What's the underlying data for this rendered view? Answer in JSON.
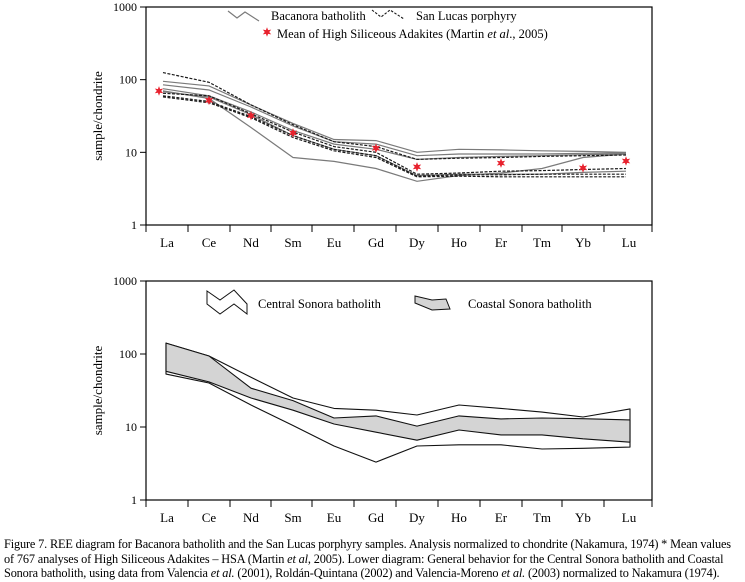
{
  "chart_data": [
    {
      "type": "line",
      "title": "",
      "xlabel": "",
      "ylabel": "sample/chondrite",
      "yscale": "log",
      "ylim": [
        1,
        1000
      ],
      "yticks": [
        "1",
        "10",
        "100",
        "1000"
      ],
      "categories": [
        "La",
        "Ce",
        "Nd",
        "Sm",
        "Eu",
        "Gd",
        "Dy",
        "Ho",
        "Er",
        "Tm",
        "Yb",
        "Lu"
      ],
      "grid": false,
      "legend": {
        "placement": "top-center",
        "entries": [
          {
            "label": "Bacanora batholith",
            "style": "solid-grey"
          },
          {
            "label": "San Lucas porphyry",
            "style": "dashed-black"
          },
          {
            "label_prefix": "Mean of High Siliceous Adakites (Martin ",
            "label_italic": "et al",
            "label_suffix": "., 2005)",
            "style": "red-star"
          }
        ]
      },
      "series": [
        {
          "name": "Bacanora batholith",
          "group": "bacanora",
          "values": [
            95,
            82,
            45,
            25,
            15,
            14.5,
            10,
            11,
            10.8,
            10.5,
            10.3,
            10
          ]
        },
        {
          "name": "Bacanora batholith",
          "group": "bacanora",
          "values": [
            85,
            72,
            42,
            23,
            14,
            13,
            9,
            9.5,
            9.5,
            9.5,
            9.7,
            9.8
          ]
        },
        {
          "name": "Bacanora batholith",
          "group": "bacanora",
          "values": [
            75,
            60,
            36,
            20,
            13,
            11,
            8,
            8.5,
            8.8,
            9,
            9.3,
            9.5
          ]
        },
        {
          "name": "Bacanora batholith",
          "group": "bacanora",
          "values": [
            70,
            55,
            22,
            8.5,
            7.5,
            6,
            4,
            4.8,
            5.2,
            6,
            8.5,
            9.5
          ]
        },
        {
          "name": "Bacanora batholith",
          "group": "bacanora",
          "values": [
            68,
            58,
            33,
            17,
            11,
            9,
            4.8,
            5,
            5,
            5,
            5.3,
            5.5
          ]
        },
        {
          "name": "San Lucas porphyry",
          "group": "sanlucas",
          "values": [
            125,
            92,
            45,
            24,
            14,
            12,
            8,
            8.3,
            8.5,
            8.8,
            9,
            9.2
          ]
        },
        {
          "name": "San Lucas porphyry",
          "group": "sanlucas",
          "values": [
            65,
            60,
            34,
            19,
            12,
            10,
            5,
            5.2,
            5.5,
            5.6,
            5.8,
            6
          ]
        },
        {
          "name": "San Lucas porphyry",
          "group": "sanlucas",
          "values": [
            60,
            50,
            31,
            17,
            11,
            9,
            4.7,
            4.9,
            4.9,
            5,
            5,
            5
          ]
        },
        {
          "name": "San Lucas porphyry",
          "group": "sanlucas",
          "values": [
            58,
            48,
            30,
            16,
            10.5,
            8.5,
            4.6,
            4.7,
            4.6,
            4.6,
            4.6,
            4.6
          ]
        }
      ],
      "markers": {
        "name": "Mean of High Siliceous Adakites",
        "points": [
          {
            "x": "La",
            "y": 70
          },
          {
            "x": "Ce",
            "y": 52
          },
          {
            "x": "Nd",
            "y": 32
          },
          {
            "x": "Sm",
            "y": 18.5
          },
          {
            "x": "Gd",
            "y": 11.4
          },
          {
            "x": "Dy",
            "y": 6.3
          },
          {
            "x": "Er",
            "y": 7.1
          },
          {
            "x": "Yb",
            "y": 6.1
          },
          {
            "x": "Lu",
            "y": 7.6
          }
        ]
      }
    },
    {
      "type": "area",
      "title": "",
      "xlabel": "",
      "ylabel": "sample/chondrite",
      "yscale": "log",
      "ylim": [
        1,
        1000
      ],
      "yticks": [
        "1",
        "10",
        "100",
        "1000"
      ],
      "categories": [
        "La",
        "Ce",
        "Nd",
        "Sm",
        "Eu",
        "Gd",
        "Dy",
        "Ho",
        "Er",
        "Tm",
        "Yb",
        "Lu"
      ],
      "grid": false,
      "legend": {
        "placement": "top-center",
        "entries": [
          {
            "label": "Central Sonora batholith",
            "style": "white-band"
          },
          {
            "label": "Coastal Sonora batholith",
            "style": "grey-band"
          }
        ]
      },
      "series": [
        {
          "name": "Central Sonora batholith",
          "fill": "#ffffff",
          "upper": [
            141,
            94,
            48,
            25,
            18,
            17,
            14.6,
            20,
            18,
            16,
            13.7,
            17.7
          ],
          "lower": [
            53,
            40,
            20,
            10.5,
            5.5,
            3.3,
            5.5,
            5.7,
            5.7,
            5.0,
            5.1,
            5.3
          ]
        },
        {
          "name": "Coastal Sonora batholith",
          "fill": "#d4d4d4",
          "upper": [
            141,
            94,
            34,
            23,
            13.3,
            14.2,
            10.3,
            14.2,
            12.9,
            13.3,
            13,
            12.5
          ],
          "lower": [
            58,
            41.5,
            25,
            17,
            11,
            8.5,
            6.6,
            9.1,
            7.8,
            7.8,
            6.9,
            6.2
          ]
        }
      ]
    }
  ],
  "caption": {
    "line1": "Figure 7. REE diagram for Bacanora batholith and the San Lucas porphyry samples. Analysis normalized to chondrite (Nakamura, 1974) * Mean values",
    "line2_a": "of 767 analyses of High Siliceous Adakites – HSA (Martin ",
    "line2_i": "et al",
    "line2_b": ", 2005). Lower diagram: General behavior for the Central Sonora batholith and Coastal",
    "line3_a": "Sonora batholith, using data from Valencia ",
    "line3_i1": "et al.",
    "line3_b": " (2001), Roldán-Quintana (2002) and Valencia-Moreno ",
    "line3_i2": "et al.",
    "line3_c": " (2003) normalized to Nakamura (1974)."
  },
  "colors": {
    "bacanora_line": "#7a7a7a",
    "sanlucas_line": "#1a1a1a",
    "hsa_star": "#e8222e",
    "coastal_fill": "#d4d4d4",
    "axis": "#000000"
  }
}
